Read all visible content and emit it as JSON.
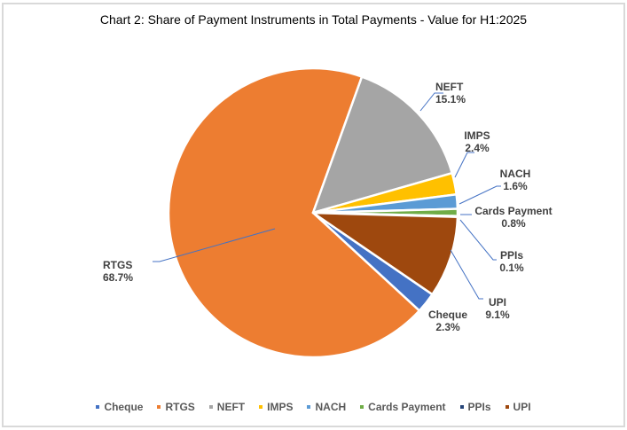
{
  "title": "Chart 2: Share of Payment Instruments in Total Payments - Value for H1:2025",
  "chart_data": {
    "type": "pie",
    "title": "Chart 2: Share of Payment Instruments in Total Payments - Value for H1:2025",
    "categories": [
      "Cheque",
      "RTGS",
      "NEFT",
      "IMPS",
      "NACH",
      "Cards Payment",
      "PPIs",
      "UPI"
    ],
    "values": [
      2.3,
      68.7,
      15.1,
      2.4,
      1.6,
      0.8,
      0.1,
      9.1
    ],
    "labels": [
      "2.3%",
      "68.7%",
      "15.1%",
      "2.4%",
      "1.6%",
      "0.8%",
      "0.1%",
      "9.1%"
    ],
    "colors": [
      "#4472c4",
      "#ed7d31",
      "#a5a5a5",
      "#ffc000",
      "#5b9bd5",
      "#70ad47",
      "#264478",
      "#9e480e"
    ],
    "legend_position": "bottom",
    "start_angle_deg": 124.4
  },
  "legend": [
    {
      "label": "Cheque",
      "color": "#4472c4"
    },
    {
      "label": "RTGS",
      "color": "#ed7d31"
    },
    {
      "label": "NEFT",
      "color": "#a5a5a5"
    },
    {
      "label": "IMPS",
      "color": "#ffc000"
    },
    {
      "label": "NACH",
      "color": "#5b9bd5"
    },
    {
      "label": "Cards Payment",
      "color": "#70ad47"
    },
    {
      "label": "PPIs",
      "color": "#264478"
    },
    {
      "label": "UPI",
      "color": "#9e480e"
    }
  ],
  "data_labels": [
    {
      "name": "Cheque",
      "value": "2.3%"
    },
    {
      "name": "RTGS",
      "value": "68.7%"
    },
    {
      "name": "NEFT",
      "value": "15.1%"
    },
    {
      "name": "IMPS",
      "value": "2.4%"
    },
    {
      "name": "NACH",
      "value": "1.6%"
    },
    {
      "name": "Cards Payment",
      "value": "0.8%"
    },
    {
      "name": "PPIs",
      "value": "0.1%"
    },
    {
      "name": "UPI",
      "value": "9.1%"
    }
  ]
}
